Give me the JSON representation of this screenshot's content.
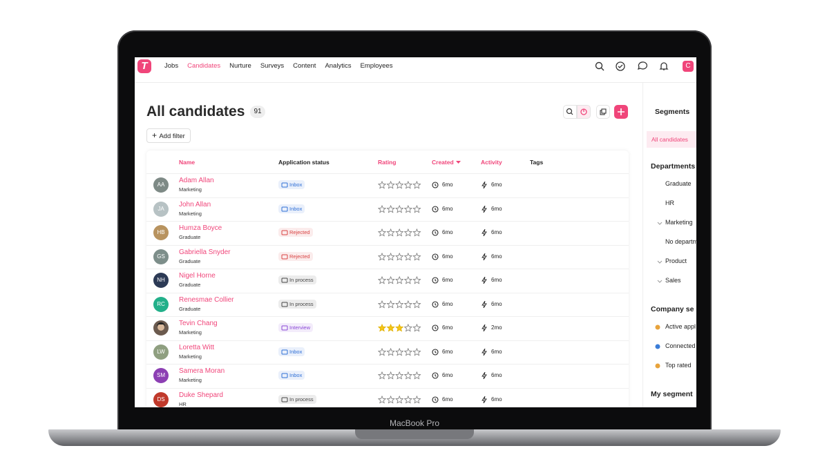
{
  "device_label": "MacBook Pro",
  "nav": {
    "logo": "T",
    "items": [
      "Jobs",
      "Candidates",
      "Nurture",
      "Surveys",
      "Content",
      "Analytics",
      "Employees"
    ],
    "user_initial": "C"
  },
  "page": {
    "title": "All candidates",
    "count": 91,
    "add_filter": "Add filter"
  },
  "table": {
    "columns": [
      "Name",
      "Application status",
      "Rating",
      "Created",
      "Activity",
      "Tags"
    ],
    "rating_scale": 5,
    "rows": [
      {
        "initials": "AA",
        "avatar_color": "#7e8a86",
        "name": "Adam Allan",
        "department": "Marketing",
        "status": "Inbox",
        "status_color": "#2f6fd6",
        "rating": 0,
        "created": "6mo",
        "activity": "6mo"
      },
      {
        "initials": "JA",
        "avatar_color": "#b7c2c4",
        "name": "John Allan",
        "department": "Marketing",
        "status": "Inbox",
        "status_color": "#2f6fd6",
        "rating": 0,
        "created": "6mo",
        "activity": "6mo"
      },
      {
        "initials": "HB",
        "avatar_color": "#b8935f",
        "name": "Humza Boyce",
        "department": "Graduate",
        "status": "Rejected",
        "status_color": "#d94343",
        "rating": 0,
        "created": "6mo",
        "activity": "6mo"
      },
      {
        "initials": "GS",
        "avatar_color": "#7d8e8a",
        "name": "Gabriella Snyder",
        "department": "Graduate",
        "status": "Rejected",
        "status_color": "#d94343",
        "rating": 0,
        "created": "6mo",
        "activity": "6mo"
      },
      {
        "initials": "NH",
        "avatar_color": "#2c3a55",
        "name": "Nigel Horne",
        "department": "Graduate",
        "status": "In process",
        "status_color": "#444444",
        "rating": 0,
        "created": "6mo",
        "activity": "6mo"
      },
      {
        "initials": "RC",
        "avatar_color": "#22b08a",
        "name": "Renesmae Collier",
        "department": "Graduate",
        "status": "In process",
        "status_color": "#444444",
        "rating": 0,
        "created": "6mo",
        "activity": "6mo"
      },
      {
        "avatar_color": "#6b5a4e",
        "name": "Tevin Chang",
        "department": "Marketing",
        "status": "Interview",
        "status_color": "#8a47d6",
        "rating": 3,
        "created": "6mo",
        "activity": "2mo"
      },
      {
        "initials": "LW",
        "avatar_color": "#8f9f80",
        "name": "Loretta Witt",
        "department": "Marketing",
        "status": "Inbox",
        "status_color": "#2f6fd6",
        "rating": 0,
        "created": "6mo",
        "activity": "6mo"
      },
      {
        "initials": "SM",
        "avatar_color": "#8c3fb3",
        "name": "Samera Moran",
        "department": "Marketing",
        "status": "Inbox",
        "status_color": "#2f6fd6",
        "rating": 0,
        "created": "6mo",
        "activity": "6mo"
      },
      {
        "initials": "DS",
        "avatar_color": "#c0392b",
        "name": "Duke Shepard",
        "department": "HR",
        "status": "In process",
        "status_color": "#444444",
        "rating": 0,
        "created": "6mo",
        "activity": "6mo"
      }
    ]
  },
  "sidebar": {
    "title": "Segments",
    "selected": "All candidates",
    "sections": [
      {
        "title": "Departments",
        "items": [
          "Graduate",
          "HR",
          "Marketing",
          "No departm",
          "Product",
          "Sales"
        ]
      },
      {
        "title": "Company se",
        "items": [
          "Active appl",
          "Connected",
          "Top rated"
        ]
      },
      {
        "title": "My segment",
        "items": []
      }
    ]
  }
}
